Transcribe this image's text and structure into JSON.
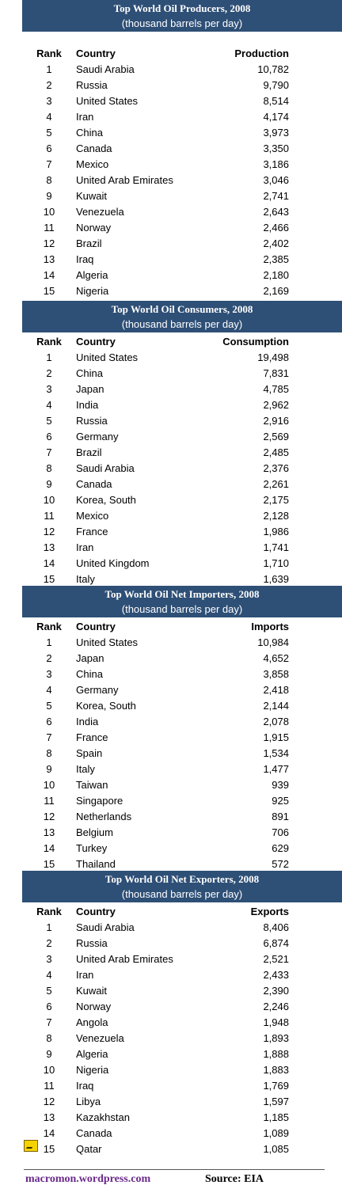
{
  "tables": [
    {
      "title": "Top World Oil Producers, 2008",
      "subtitle": "(thousand barrels per day)",
      "headers": [
        "Rank",
        "Country",
        "Production"
      ],
      "rows": [
        [
          "1",
          "Saudi Arabia",
          "10,782"
        ],
        [
          "2",
          "Russia",
          "9,790"
        ],
        [
          "3",
          "United States",
          "8,514"
        ],
        [
          "4",
          "Iran",
          "4,174"
        ],
        [
          "5",
          "China",
          "3,973"
        ],
        [
          "6",
          "Canada",
          "3,350"
        ],
        [
          "7",
          "Mexico",
          "3,186"
        ],
        [
          "8",
          "United Arab Emirates",
          "3,046"
        ],
        [
          "9",
          "Kuwait",
          "2,741"
        ],
        [
          "10",
          "Venezuela",
          "2,643"
        ],
        [
          "11",
          "Norway",
          "2,466"
        ],
        [
          "12",
          "Brazil",
          "2,402"
        ],
        [
          "13",
          "Iraq",
          "2,385"
        ],
        [
          "14",
          "Algeria",
          "2,180"
        ],
        [
          "15",
          "Nigeria",
          "2,169"
        ]
      ]
    },
    {
      "title": "Top World Oil Consumers, 2008",
      "subtitle": "(thousand barrels per day)",
      "headers": [
        "Rank",
        "Country",
        "Consumption"
      ],
      "rows": [
        [
          "1",
          "United States",
          "19,498"
        ],
        [
          "2",
          "China",
          "7,831"
        ],
        [
          "3",
          "Japan",
          "4,785"
        ],
        [
          "4",
          "India",
          "2,962"
        ],
        [
          "5",
          "Russia",
          "2,916"
        ],
        [
          "6",
          "Germany",
          "2,569"
        ],
        [
          "7",
          "Brazil",
          "2,485"
        ],
        [
          "8",
          "Saudi Arabia",
          "2,376"
        ],
        [
          "9",
          "Canada",
          "2,261"
        ],
        [
          "10",
          "Korea, South",
          "2,175"
        ],
        [
          "11",
          "Mexico",
          "2,128"
        ],
        [
          "12",
          "France",
          "1,986"
        ],
        [
          "13",
          "Iran",
          "1,741"
        ],
        [
          "14",
          "United Kingdom",
          "1,710"
        ],
        [
          "15",
          "Italy",
          "1,639"
        ]
      ]
    },
    {
      "title": "Top World Oil Net Importers, 2008",
      "subtitle": "(thousand barrels per day)",
      "headers": [
        "Rank",
        "Country",
        "Imports"
      ],
      "rows": [
        [
          "1",
          "United States",
          "10,984"
        ],
        [
          "2",
          "Japan",
          "4,652"
        ],
        [
          "3",
          "China",
          "3,858"
        ],
        [
          "4",
          "Germany",
          "2,418"
        ],
        [
          "5",
          "Korea, South",
          "2,144"
        ],
        [
          "6",
          "India",
          "2,078"
        ],
        [
          "7",
          "France",
          "1,915"
        ],
        [
          "8",
          "Spain",
          "1,534"
        ],
        [
          "9",
          "Italy",
          "1,477"
        ],
        [
          "10",
          "Taiwan",
          "939"
        ],
        [
          "11",
          "Singapore",
          "925"
        ],
        [
          "12",
          "Netherlands",
          "891"
        ],
        [
          "13",
          "Belgium",
          "706"
        ],
        [
          "14",
          "Turkey",
          "629"
        ],
        [
          "15",
          "Thailand",
          "572"
        ]
      ]
    },
    {
      "title": "Top World Oil Net Exporters, 2008",
      "subtitle": "(thousand barrels per day)",
      "headers": [
        "Rank",
        "Country",
        "Exports"
      ],
      "rows": [
        [
          "1",
          "Saudi Arabia",
          "8,406"
        ],
        [
          "2",
          "Russia",
          "6,874"
        ],
        [
          "3",
          "United Arab Emirates",
          "2,521"
        ],
        [
          "4",
          "Iran",
          "2,433"
        ],
        [
          "5",
          "Kuwait",
          "2,390"
        ],
        [
          "6",
          "Norway",
          "2,246"
        ],
        [
          "7",
          "Angola",
          "1,948"
        ],
        [
          "8",
          "Venezuela",
          "1,893"
        ],
        [
          "9",
          "Algeria",
          "1,888"
        ],
        [
          "10",
          "Nigeria",
          "1,883"
        ],
        [
          "11",
          "Iraq",
          "1,769"
        ],
        [
          "12",
          "Libya",
          "1,597"
        ],
        [
          "13",
          "Kazakhstan",
          "1,185"
        ],
        [
          "14",
          "Canada",
          "1,089"
        ],
        [
          "15",
          "Qatar",
          "1,085"
        ]
      ]
    }
  ],
  "footer": {
    "site": "macromon.wordpress.com",
    "source": "Source:  EIA"
  },
  "colors": {
    "banner": "#2e4f76",
    "footer_site": "#6a2a8a"
  },
  "icons": {
    "row_marker": "smart-tag-icon"
  }
}
